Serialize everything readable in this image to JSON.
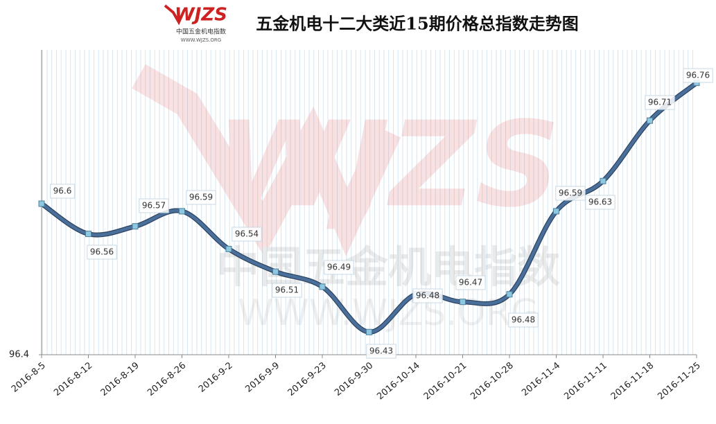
{
  "logo": {
    "mark": "WJZS",
    "name": "中国五金机电指数",
    "url": "WWW.WJZS.ORG"
  },
  "chart_data": {
    "type": "line",
    "title": "五金机电十二大类近15期价格总指数走势图",
    "categories": [
      "2016-8-5",
      "2016-8-12",
      "2016-8-19",
      "2016-8-26",
      "2016-9-2",
      "2016-9-9",
      "2016-9-23",
      "2016-9-30",
      "2016-10-14",
      "2016-10-21",
      "2016-10-28",
      "2016-11-4",
      "2016-11-11",
      "2016-11-18",
      "2016-11-25"
    ],
    "series": [
      {
        "name": "价格总指数",
        "color": "#4a6f9a",
        "marker_color": "#8ec8e0",
        "values": [
          96.6,
          96.56,
          96.57,
          96.59,
          96.54,
          96.51,
          96.49,
          96.43,
          96.48,
          96.47,
          96.48,
          96.59,
          96.63,
          96.71,
          96.76
        ]
      }
    ],
    "ylim": [
      96.4,
      96.8
    ],
    "yticks": [
      96.4
    ],
    "grid": true,
    "legend": false
  }
}
